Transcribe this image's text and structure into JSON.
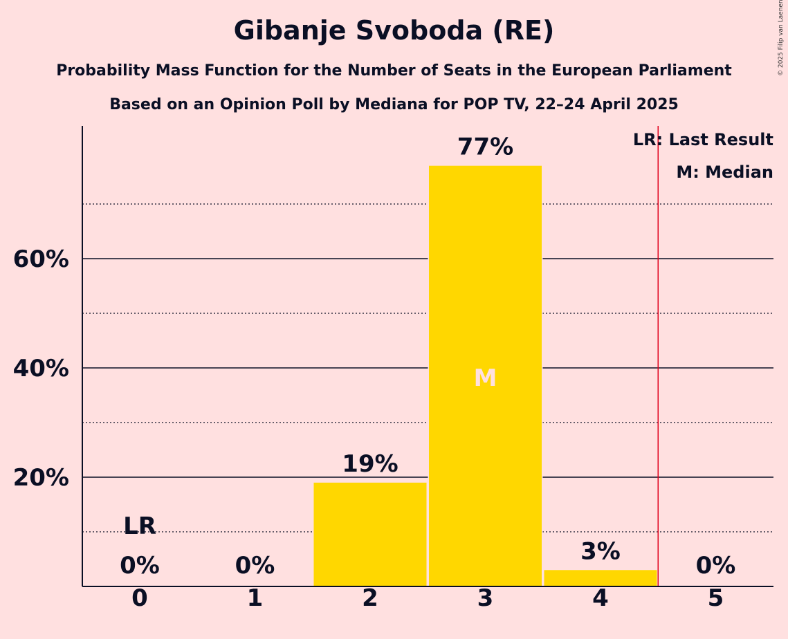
{
  "header": {
    "title": "Gibanje Svoboda (RE)",
    "subtitle1": "Probability Mass Function for the Number of Seats in the European Parliament",
    "subtitle2": "Based on an Opinion Poll by Mediana for POP TV, 22–24 April 2025",
    "copyright": "© 2025 Filip van Laenen"
  },
  "legend": {
    "lr": "LR: Last Result",
    "m": "M: Median"
  },
  "colors": {
    "background": "#FFE0E0",
    "bar": "#FFD700",
    "last_result_line": "#E0001B",
    "median_label": "#FFE0E0",
    "text": "#0a0f24"
  },
  "chart_data": {
    "type": "bar",
    "title": "Gibanje Svoboda (RE)",
    "categories": [
      "0",
      "1",
      "2",
      "3",
      "4",
      "5"
    ],
    "values": [
      0,
      0,
      19,
      77,
      3,
      0
    ],
    "value_labels": [
      "0%",
      "0%",
      "19%",
      "77%",
      "3%",
      "0%"
    ],
    "xlabel": "",
    "ylabel": "",
    "ylim": [
      0,
      84
    ],
    "yticks": [
      20,
      40,
      60
    ],
    "ytick_labels": [
      "20%",
      "40%",
      "60%"
    ],
    "minor_gridlines": [
      10,
      30,
      50,
      70
    ],
    "last_result_seats": 0,
    "last_result_marker": "LR",
    "median_seats": 3,
    "median_marker": "M",
    "vertical_line_after_seats": 4.5,
    "legend_position": "top-right"
  }
}
